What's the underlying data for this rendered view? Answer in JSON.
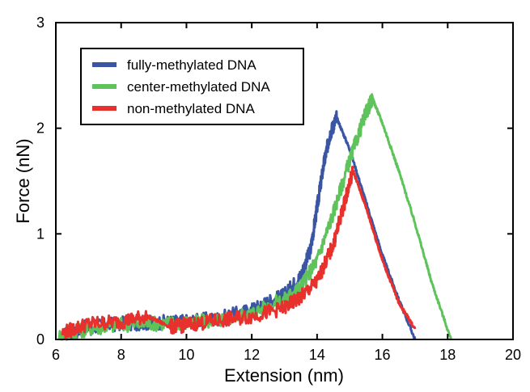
{
  "chart_data": {
    "type": "line",
    "title": "",
    "xlabel": "Extension (nm)",
    "ylabel": "Force (nN)",
    "xlim": [
      6,
      20
    ],
    "ylim": [
      0,
      3
    ],
    "xticks": [
      6,
      8,
      10,
      12,
      14,
      16,
      18,
      20
    ],
    "yticks": [
      0,
      1,
      2,
      3
    ],
    "grid": false,
    "legend_position": "top-left",
    "series": [
      {
        "name": "fully-methylated DNA",
        "color": "#3a55a4",
        "x": [
          6.3,
          7,
          8,
          9,
          10,
          11,
          12,
          12.5,
          13,
          13.5,
          13.8,
          14.0,
          14.2,
          14.4,
          14.6,
          15.0,
          15.5,
          16.0,
          16.5,
          17.0
        ],
        "y": [
          0.05,
          0.12,
          0.15,
          0.16,
          0.17,
          0.2,
          0.28,
          0.35,
          0.42,
          0.6,
          0.85,
          1.25,
          1.65,
          1.95,
          2.1,
          1.8,
          1.3,
          0.8,
          0.38,
          0.0
        ]
      },
      {
        "name": "center-methylated DNA",
        "color": "#5ec35a",
        "x": [
          6.1,
          7,
          8,
          9,
          10,
          11,
          12,
          13,
          13.5,
          14.0,
          14.5,
          15.0,
          15.5,
          15.7,
          16.0,
          16.5,
          17.0,
          17.5,
          18.1
        ],
        "y": [
          0.03,
          0.1,
          0.14,
          0.15,
          0.16,
          0.18,
          0.25,
          0.38,
          0.5,
          0.75,
          1.2,
          1.7,
          2.15,
          2.28,
          2.05,
          1.6,
          1.1,
          0.55,
          0.0
        ]
      },
      {
        "name": "non-methylated DNA",
        "color": "#e8302c",
        "x": [
          6.2,
          7,
          8,
          8.8,
          9.5,
          10,
          11,
          12,
          13,
          13.5,
          14.0,
          14.5,
          14.8,
          15.1,
          15.5,
          16.0,
          16.5,
          17.0
        ],
        "y": [
          0.06,
          0.15,
          0.17,
          0.22,
          0.12,
          0.14,
          0.18,
          0.22,
          0.3,
          0.4,
          0.55,
          0.9,
          1.25,
          1.6,
          1.25,
          0.75,
          0.35,
          0.1
        ]
      }
    ]
  }
}
